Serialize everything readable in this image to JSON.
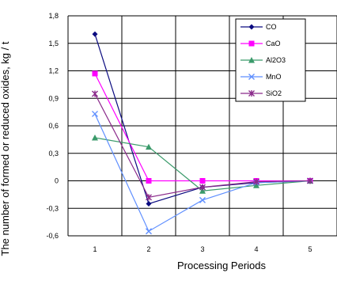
{
  "chart_data": {
    "type": "line",
    "title": "",
    "xlabel": "Processing Periods",
    "ylabel": "The number of formed or reduced oxides, kg / t",
    "categories": [
      "1",
      "2",
      "3",
      "4",
      "5"
    ],
    "ylim": [
      -0.6,
      1.8
    ],
    "yticks": [
      "1,8",
      "1,5",
      "1,2",
      "0,9",
      "0,6",
      "0,3",
      "0",
      "-0,3",
      "-0,6"
    ],
    "ytick_values": [
      1.8,
      1.5,
      1.2,
      0.9,
      0.6,
      0.3,
      0,
      -0.3,
      -0.6
    ],
    "grid": true,
    "legend_position": "top-right",
    "series": [
      {
        "name": "CO",
        "color": "#0b0b80",
        "marker": "diamond",
        "values": [
          1.6,
          -0.25,
          -0.07,
          -0.02,
          0
        ]
      },
      {
        "name": "CaO",
        "color": "#ff00ff",
        "marker": "square",
        "values": [
          1.17,
          0,
          0,
          0,
          0
        ]
      },
      {
        "name": "Al2O3",
        "color": "#3a9a6a",
        "marker": "triangle",
        "values": [
          0.47,
          0.37,
          -0.11,
          -0.05,
          0
        ]
      },
      {
        "name": "MnO",
        "color": "#5f8fff",
        "marker": "x",
        "values": [
          0.73,
          -0.55,
          -0.21,
          -0.02,
          0
        ]
      },
      {
        "name": "SiO2",
        "color": "#8b2a8b",
        "marker": "star",
        "values": [
          0.95,
          -0.18,
          -0.07,
          -0.01,
          0
        ]
      }
    ]
  }
}
